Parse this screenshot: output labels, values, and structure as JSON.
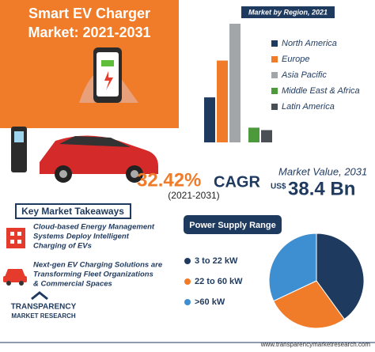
{
  "header": {
    "title_line1": "Smart EV Charger",
    "title_line2": "Market: 2021-2031"
  },
  "cagr": {
    "value": "32.42%",
    "label": "CAGR",
    "period": "(2021-2031)"
  },
  "market_value": {
    "label": "Market Value, 2031",
    "currency": "US$",
    "value": "38.4 Bn"
  },
  "takeaways": {
    "title": "Key Market Takeaways",
    "items": [
      [
        "Cloud-based Energy Management",
        "Systems Deploy Intelligent",
        "Charging of EVs"
      ],
      [
        "Next-gen EV Charging Solutions are",
        "Transforming Fleet Organizations",
        "& Commercial Spaces"
      ]
    ]
  },
  "logo": {
    "line1": "TRANSPARENCY",
    "line2": "MARKET RESEARCH"
  },
  "footer": {
    "url": "www.transparencymarketresearch.com"
  },
  "chart_data": [
    {
      "type": "bar",
      "title": "Market by Region, 2021",
      "categories": [
        "North America",
        "Europe",
        "Asia Pacific",
        "Middle East & Africa",
        "Latin America"
      ],
      "values": [
        55,
        100,
        145,
        18,
        15
      ],
      "colors": [
        "#1f3a5f",
        "#f07c2a",
        "#a3a6a8",
        "#4c9a3c",
        "#4a4f55"
      ]
    },
    {
      "type": "pie",
      "title": "Power Supply Range",
      "categories": [
        "3 to 22 kW",
        "22 to 60 kW",
        ">60 kW"
      ],
      "values": [
        40,
        28,
        32
      ],
      "colors": [
        "#1f3a5f",
        "#f07c2a",
        "#3d8fd1"
      ]
    }
  ]
}
